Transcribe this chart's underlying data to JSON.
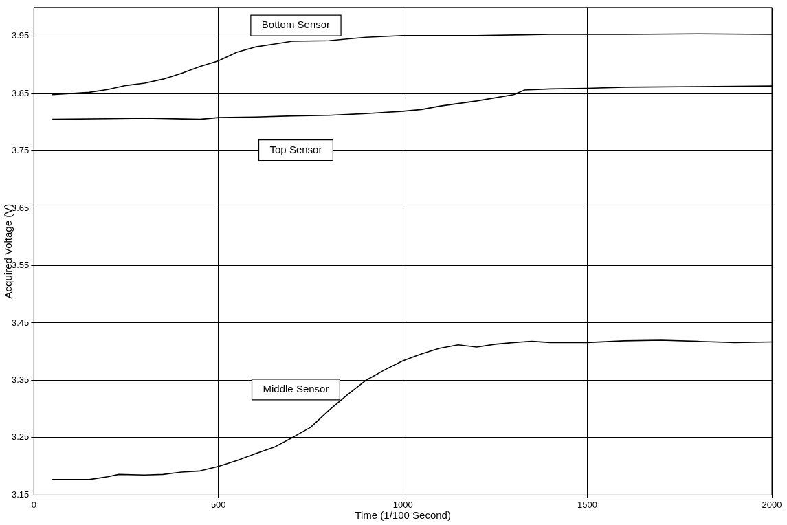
{
  "chart_data": {
    "type": "line",
    "xlabel": "Time (1/100 Second)",
    "ylabel": "Acquired Voltage (V)",
    "xlim": [
      0,
      2000
    ],
    "xticks": [
      0,
      500,
      1000,
      1500,
      2000
    ],
    "ylim": [
      3.15,
      4.0
    ],
    "yticks": [
      3.15,
      3.25,
      3.35,
      3.45,
      3.55,
      3.65,
      3.75,
      3.85,
      3.95
    ],
    "grid": true,
    "legend": false,
    "marker": "none",
    "line_style": "solid",
    "series": [
      {
        "name": "Bottom Sensor",
        "color": "#000000",
        "x": [
          50,
          150,
          200,
          250,
          300,
          350,
          400,
          450,
          500,
          550,
          600,
          650,
          700,
          800,
          900,
          1000,
          1200,
          1400,
          1600,
          1800,
          2000
        ],
        "values": [
          3.848,
          3.852,
          3.857,
          3.864,
          3.868,
          3.875,
          3.885,
          3.897,
          3.907,
          3.922,
          3.931,
          3.936,
          3.941,
          3.942,
          3.948,
          3.951,
          3.951,
          3.953,
          3.953,
          3.954,
          3.953
        ]
      },
      {
        "name": "Top Sensor",
        "color": "#000000",
        "x": [
          50,
          200,
          300,
          450,
          500,
          600,
          700,
          800,
          900,
          1000,
          1050,
          1100,
          1200,
          1300,
          1330,
          1400,
          1500,
          1600,
          1800,
          2000
        ],
        "values": [
          3.805,
          3.806,
          3.807,
          3.805,
          3.808,
          3.809,
          3.811,
          3.812,
          3.815,
          3.819,
          3.822,
          3.828,
          3.837,
          3.848,
          3.856,
          3.858,
          3.859,
          3.861,
          3.862,
          3.863
        ]
      },
      {
        "name": "Middle Sensor",
        "color": "#000000",
        "x": [
          50,
          150,
          200,
          230,
          300,
          350,
          400,
          450,
          500,
          550,
          600,
          650,
          700,
          750,
          800,
          850,
          900,
          950,
          1000,
          1050,
          1100,
          1150,
          1200,
          1250,
          1300,
          1350,
          1400,
          1500,
          1600,
          1700,
          1800,
          1900,
          2000
        ],
        "values": [
          3.177,
          3.177,
          3.182,
          3.186,
          3.185,
          3.186,
          3.19,
          3.192,
          3.2,
          3.21,
          3.222,
          3.233,
          3.25,
          3.268,
          3.298,
          3.325,
          3.35,
          3.368,
          3.384,
          3.396,
          3.406,
          3.412,
          3.408,
          3.413,
          3.416,
          3.418,
          3.416,
          3.416,
          3.419,
          3.42,
          3.418,
          3.416,
          3.417
        ]
      }
    ]
  }
}
